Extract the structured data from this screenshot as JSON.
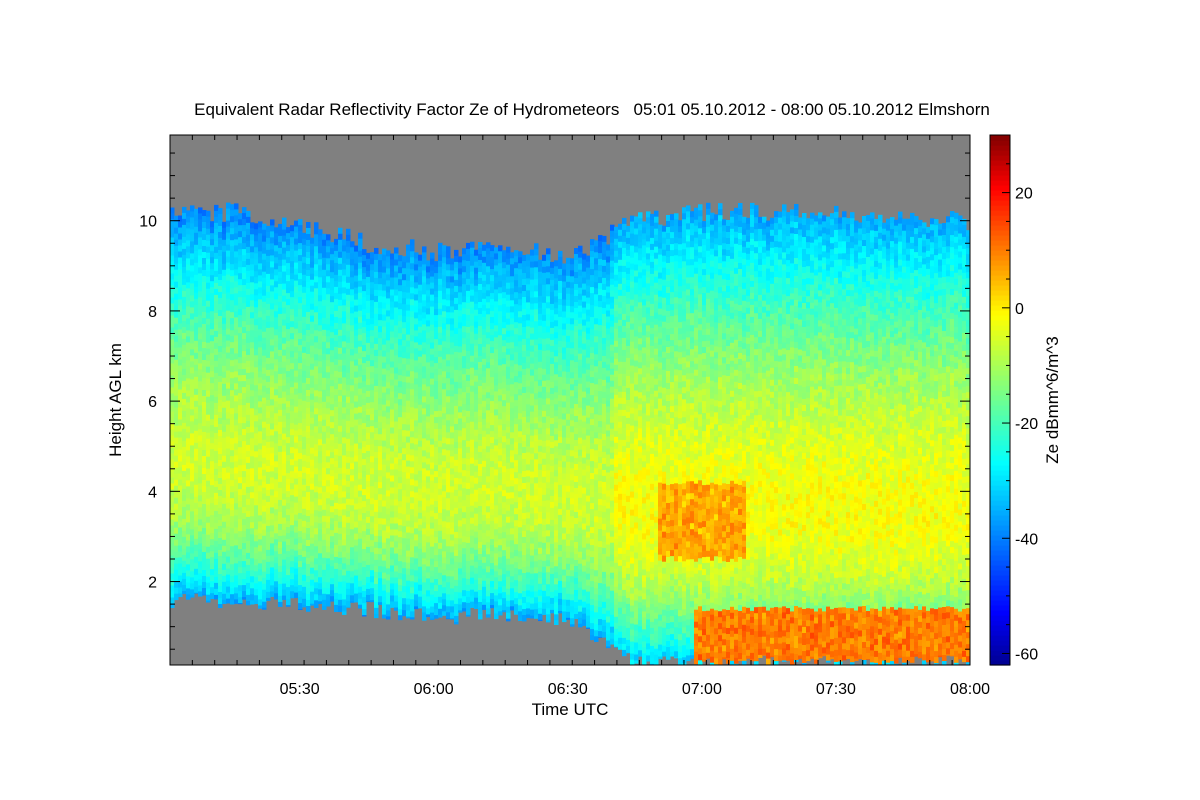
{
  "chart_data": {
    "type": "heatmap",
    "title": "Equivalent Radar Reflectivity Factor Ze of Hydrometeors   05:01 05.10.2012 - 08:00 05.10.2012 Elmshorn",
    "xlabel": "Time UTC",
    "ylabel": "Height AGL km",
    "colorbar_label": "Ze dBmm^6/m^3",
    "x_range_minutes_utc": [
      301,
      480
    ],
    "x_ticks": [
      {
        "minute": 330,
        "label": "05:30"
      },
      {
        "minute": 360,
        "label": "06:00"
      },
      {
        "minute": 390,
        "label": "06:30"
      },
      {
        "minute": 420,
        "label": "07:00"
      },
      {
        "minute": 450,
        "label": "07:30"
      },
      {
        "minute": 480,
        "label": "08:00"
      }
    ],
    "y_range": [
      0.15,
      11.9
    ],
    "y_ticks": [
      2,
      4,
      6,
      8,
      10
    ],
    "color_range": [
      -62,
      30
    ],
    "color_ticks": [
      -60,
      -40,
      -20,
      0,
      20
    ],
    "no_data_color": "#808080",
    "colormap": [
      "#00008f",
      "#0000ff",
      "#00ffff",
      "#ffff00",
      "#ff0000",
      "#800000"
    ],
    "echo_profile": [
      {
        "time": "05:01",
        "base_km": 1.6,
        "top_km": 10.1
      },
      {
        "time": "05:15",
        "base_km": 1.55,
        "top_km": 10.2
      },
      {
        "time": "05:30",
        "base_km": 1.5,
        "top_km": 9.9
      },
      {
        "time": "05:45",
        "base_km": 1.4,
        "top_km": 9.5
      },
      {
        "time": "06:00",
        "base_km": 1.2,
        "top_km": 9.3
      },
      {
        "time": "06:15",
        "base_km": 1.3,
        "top_km": 9.4
      },
      {
        "time": "06:30",
        "base_km": 1.2,
        "top_km": 9.2
      },
      {
        "time": "06:45",
        "base_km": 0.2,
        "top_km": 10.0
      },
      {
        "time": "07:00",
        "base_km": 0.2,
        "top_km": 10.2
      },
      {
        "time": "07:30",
        "base_km": 0.2,
        "top_km": 10.2
      },
      {
        "time": "08:00",
        "base_km": 0.2,
        "top_km": 10.0
      }
    ],
    "max_reflectivity_features": [
      {
        "time_range": [
          "06:50",
          "07:10"
        ],
        "height_range_km": [
          2.5,
          4.2
        ],
        "ze_dbz_approx": 8
      },
      {
        "time_range": [
          "06:58",
          "08:00"
        ],
        "height_range_km": [
          0.2,
          1.4
        ],
        "ze_dbz_approx": 12
      }
    ]
  }
}
